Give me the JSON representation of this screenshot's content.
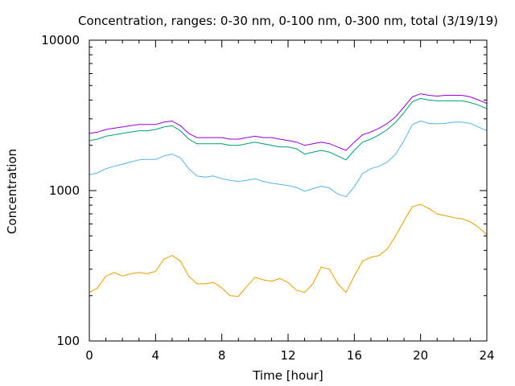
{
  "chart_data": {
    "type": "line",
    "title": "Concentration, ranges: 0-30 nm, 0-100 nm, 0-300 nm, total (3/19/19)",
    "xlabel": "Time [hour]",
    "ylabel": "Concentration",
    "xlim": [
      0,
      24
    ],
    "ylim": [
      100,
      10000
    ],
    "yscale": "log",
    "grid": false,
    "xticks": [
      "0",
      "4",
      "8",
      "12",
      "16",
      "20",
      "24"
    ],
    "yticks": [
      "100",
      "1000",
      "10000"
    ],
    "x": [
      0,
      0.5,
      1,
      1.5,
      2,
      2.5,
      3,
      3.5,
      4,
      4.5,
      5,
      5.5,
      6,
      6.5,
      7,
      7.5,
      8,
      8.5,
      9,
      9.5,
      10,
      10.5,
      11,
      11.5,
      12,
      12.5,
      13,
      13.5,
      14,
      14.5,
      15,
      15.5,
      16,
      16.5,
      17,
      17.5,
      18,
      18.5,
      19,
      19.5,
      20,
      20.5,
      21,
      21.5,
      22,
      22.5,
      23,
      23.5,
      24
    ],
    "series": [
      {
        "color": "#9400d3",
        "values": [
          2400,
          2450,
          2550,
          2600,
          2650,
          2700,
          2750,
          2750,
          2750,
          2850,
          2900,
          2700,
          2400,
          2250,
          2250,
          2250,
          2250,
          2200,
          2200,
          2250,
          2300,
          2250,
          2250,
          2200,
          2150,
          2100,
          2000,
          2050,
          2100,
          2050,
          1950,
          1850,
          2100,
          2350,
          2450,
          2600,
          2800,
          3100,
          3600,
          4200,
          4400,
          4300,
          4250,
          4300,
          4300,
          4300,
          4200,
          4000,
          3800
        ]
      },
      {
        "color": "#009e73",
        "values": [
          2150,
          2200,
          2300,
          2350,
          2400,
          2450,
          2500,
          2500,
          2550,
          2650,
          2700,
          2500,
          2200,
          2050,
          2050,
          2050,
          2050,
          2000,
          2000,
          2050,
          2100,
          2050,
          2000,
          1950,
          1950,
          1900,
          1750,
          1800,
          1850,
          1800,
          1700,
          1600,
          1850,
          2100,
          2200,
          2350,
          2550,
          2850,
          3300,
          3900,
          4100,
          4000,
          3950,
          3950,
          3950,
          3950,
          3850,
          3700,
          3500
        ]
      },
      {
        "color": "#56b4e9",
        "values": [
          1280,
          1310,
          1400,
          1450,
          1500,
          1550,
          1600,
          1610,
          1610,
          1700,
          1750,
          1650,
          1400,
          1250,
          1230,
          1250,
          1200,
          1170,
          1150,
          1170,
          1200,
          1150,
          1120,
          1100,
          1080,
          1050,
          990,
          1030,
          1070,
          1040,
          950,
          910,
          1060,
          1300,
          1400,
          1450,
          1550,
          1750,
          2150,
          2750,
          2900,
          2800,
          2780,
          2800,
          2850,
          2850,
          2800,
          2650,
          2500
        ]
      },
      {
        "color": "#e69f00",
        "values": [
          210,
          225,
          270,
          285,
          270,
          280,
          285,
          280,
          290,
          350,
          370,
          340,
          270,
          240,
          240,
          245,
          225,
          200,
          198,
          230,
          265,
          255,
          250,
          260,
          245,
          218,
          210,
          240,
          310,
          300,
          240,
          210,
          270,
          340,
          360,
          370,
          410,
          500,
          630,
          780,
          810,
          760,
          700,
          680,
          660,
          650,
          620,
          570,
          510
        ]
      }
    ]
  }
}
